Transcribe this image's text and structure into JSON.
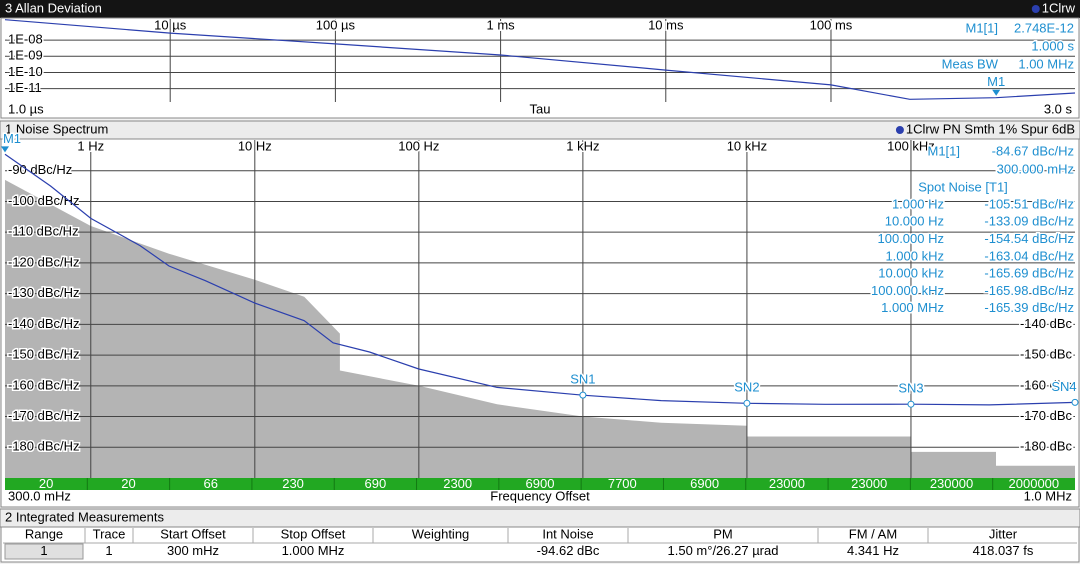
{
  "allan": {
    "type": "line",
    "title": "3 Allan Deviation",
    "trace_label": "1Clrw",
    "log_x": true,
    "log_y": true,
    "grid": true,
    "x": [
      1e-06,
      1e-05,
      0.0001,
      0.001,
      0.01,
      0.1,
      0.3,
      1,
      3
    ],
    "series": [
      {
        "color": "#2b3fae",
        "values": [
          1.8e-07,
          2.7e-08,
          5.8e-09,
          1.2e-09,
          1.4e-10,
          1.7e-11,
          2.2e-12,
          2.748e-12,
          5.4e-12
        ]
      }
    ],
    "xlim": [
      1e-06,
      3
    ],
    "ylim": [
      1.5e-12,
      2e-07
    ],
    "xticks": [
      {
        "value": 1e-05,
        "label": "10 µs"
      },
      {
        "value": 0.0001,
        "label": "100 µs"
      },
      {
        "value": 0.001,
        "label": "1 ms"
      },
      {
        "value": 0.01,
        "label": "10 ms"
      },
      {
        "value": 0.1,
        "label": "100 ms"
      }
    ],
    "yticks": [
      {
        "value": 1e-08,
        "label": "1E-08"
      },
      {
        "value": 1e-09,
        "label": "1E-09"
      },
      {
        "value": 1e-10,
        "label": "1E-10"
      },
      {
        "value": 1e-11,
        "label": "1E-11"
      }
    ],
    "x_start_label": "1.0 µs",
    "x_label": "Tau",
    "x_stop_label": "3.0 s",
    "markers": [
      {
        "label": "M1",
        "x": 1,
        "y": 2.748e-12
      }
    ],
    "readout": [
      [
        "M1[1]",
        "2.748E-12"
      ],
      [
        "1.000 s"
      ],
      [
        "Meas BW",
        "1.00 MHz"
      ]
    ]
  },
  "noise": {
    "type": "line",
    "title": "1 Noise Spectrum",
    "trace_label": "1Clrw PN Smth 1% Spur 6dB",
    "log_x": true,
    "log_y": false,
    "grid": true,
    "x": [
      0.3,
      0.57,
      1,
      2,
      3,
      5,
      10,
      20,
      30,
      50,
      100,
      300,
      1000,
      3000,
      10000,
      30000,
      100000,
      300000,
      1000000
    ],
    "series": [
      {
        "color": "#2b3fae",
        "values": [
          -84.67,
          -95,
          -105.51,
          -114.4,
          -121,
          -125.8,
          -133.09,
          -138.8,
          -146,
          -149,
          -154.54,
          -160.5,
          -163.04,
          -164.8,
          -165.69,
          -166,
          -165.98,
          -166.2,
          -165.39
        ]
      }
    ],
    "mask": {
      "color": "#b4b4b4",
      "x": [
        0.3,
        1,
        3,
        10,
        20,
        33,
        33,
        100,
        300,
        1000,
        3000,
        10000,
        10000,
        100000,
        100000,
        330000,
        330000,
        1000000
      ],
      "values": [
        -93,
        -108,
        -117,
        -125.5,
        -131,
        -143,
        -155,
        -160,
        -166,
        -170,
        -172,
        -173,
        -176.5,
        -176.5,
        -181.5,
        -181.5,
        -186,
        -186
      ]
    },
    "xlim": [
      0.3,
      1000000
    ],
    "ylim": [
      -190,
      -80
    ],
    "xticks": [
      {
        "value": 1,
        "label": "1 Hz"
      },
      {
        "value": 10,
        "label": "10 Hz"
      },
      {
        "value": 100,
        "label": "100 Hz"
      },
      {
        "value": 1000,
        "label": "1 kHz"
      },
      {
        "value": 10000,
        "label": "10 kHz"
      },
      {
        "value": 100000,
        "label": "100 kHz"
      }
    ],
    "yticks": [
      {
        "value": -90,
        "label": "-90 dBc/Hz"
      },
      {
        "value": -100,
        "label": "-100 dBc/Hz"
      },
      {
        "value": -110,
        "label": "-110 dBc/Hz"
      },
      {
        "value": -120,
        "label": "-120 dBc/Hz"
      },
      {
        "value": -130,
        "label": "-130 dBc/Hz"
      },
      {
        "value": -140,
        "label": "-140 dBc/Hz"
      },
      {
        "value": -150,
        "label": "-150 dBc/Hz"
      },
      {
        "value": -160,
        "label": "-160 dBc/Hz"
      },
      {
        "value": -170,
        "label": "-170 dBc/Hz"
      },
      {
        "value": -180,
        "label": "-180 dBc/Hz"
      }
    ],
    "y2ticks": [
      {
        "value": -140,
        "label": "-140 dBc"
      },
      {
        "value": -150,
        "label": "-150 dBc"
      },
      {
        "value": -160,
        "label": "-160 dBc"
      },
      {
        "value": -170,
        "label": "-170 dBc"
      },
      {
        "value": -180,
        "label": "-180 dBc"
      }
    ],
    "markers": [
      {
        "label": "M1",
        "x": 0.3,
        "y": -84.67
      },
      {
        "label": "SN1",
        "x": 1000,
        "y": -163.04
      },
      {
        "label": "SN2",
        "x": 10000,
        "y": -165.69
      },
      {
        "label": "SN3",
        "x": 100000,
        "y": -165.98
      },
      {
        "label": "SN4",
        "x": 1000000,
        "y": -165.39
      }
    ],
    "readout": [
      [
        "M1[1]",
        "-84.67 dBc/Hz"
      ],
      [
        "300.000 mHz"
      ]
    ],
    "spot_title": "Spot Noise [T1]",
    "spot_rows": [
      [
        "1.000 Hz",
        "-105.51 dBc/Hz"
      ],
      [
        "10.000 Hz",
        "-133.09 dBc/Hz"
      ],
      [
        "100.000 Hz",
        "-154.54 dBc/Hz"
      ],
      [
        "1.000 kHz",
        "-163.04 dBc/Hz"
      ],
      [
        "10.000 kHz",
        "-165.69 dBc/Hz"
      ],
      [
        "100.000 kHz",
        "-165.98 dBc/Hz"
      ],
      [
        "1.000 MHz",
        "-165.39 dBc/Hz"
      ]
    ],
    "segments": [
      20,
      20,
      66,
      230,
      690,
      2300,
      6900,
      7700,
      6900,
      23000,
      23000,
      230000,
      2000000
    ],
    "x_start_label": "300.0 mHz",
    "x_label": "Frequency Offset",
    "x_stop_label": "1.0 MHz"
  },
  "integrated": {
    "title": "2 Integrated Measurements",
    "columns": [
      {
        "header": "Range",
        "value": "1"
      },
      {
        "header": "Trace",
        "value": "1"
      },
      {
        "header": "Start Offset",
        "value": "300 mHz"
      },
      {
        "header": "Stop Offset",
        "value": "1.000 MHz"
      },
      {
        "header": "Weighting"
      },
      {
        "header": "Int Noise",
        "value": "-94.62 dBc"
      },
      {
        "header": "PM",
        "value": "1.50 m°/26.27 µrad"
      },
      {
        "header": "FM / AM",
        "value": "4.341 Hz"
      },
      {
        "header": "Jitter",
        "value": "418.037 fs"
      }
    ]
  }
}
